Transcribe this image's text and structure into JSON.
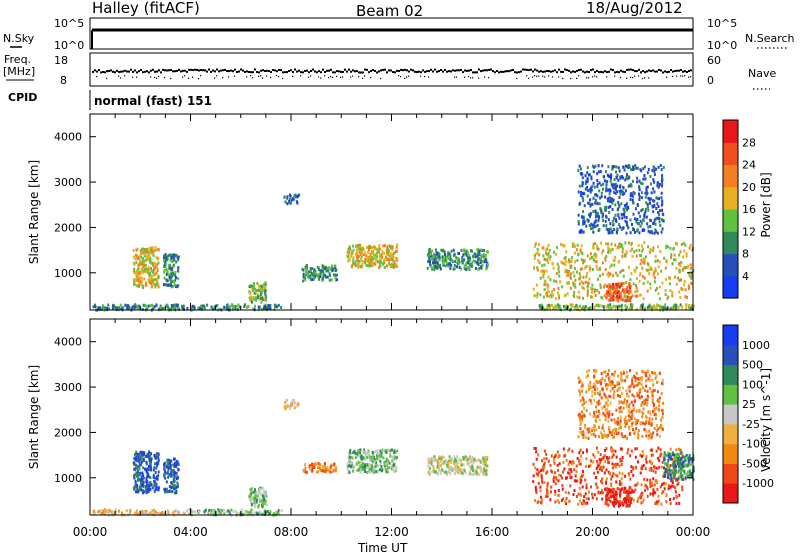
{
  "header": {
    "station": "Halley (fitACF)",
    "beam": "Beam 02",
    "date": "18/Aug/2012"
  },
  "left_labels": {
    "nsky": "N.Sky",
    "freq": "Freq.",
    "freq_unit": "[MHz]",
    "cpid": "CPID"
  },
  "right_labels": {
    "nsearch": "N.Search",
    "nave": "Nave"
  },
  "strip_ticks": {
    "nsky_top": "10^5",
    "nsky_bottom": "10^0",
    "nsearch_top": "10^5",
    "nsearch_bottom": "10^0",
    "freq_top": "18",
    "freq_bottom": "8",
    "nave_top": "60",
    "nave_bottom": "0"
  },
  "cpid_text": "normal (fast) 151",
  "x_axis": {
    "label": "Time UT",
    "ticks": [
      "00:00",
      "04:00",
      "08:00",
      "12:00",
      "16:00",
      "20:00",
      "00:00"
    ]
  },
  "colors": {
    "power": [
      "#1a3cf0",
      "#2850b8",
      "#2e8a5a",
      "#60c040",
      "#e8b020",
      "#f08020",
      "#f05020",
      "#e81818"
    ],
    "velocity": [
      "#e81818",
      "#f04818",
      "#f08a10",
      "#f0b040",
      "#c8c8c8",
      "#60c040",
      "#2e8a5a",
      "#2850b8",
      "#1a3cf0"
    ]
  },
  "chart_data": [
    {
      "type": "heatmap",
      "title": "",
      "xlabel": "",
      "ylabel": "Slant Range [km]",
      "xlim": [
        0,
        24
      ],
      "ylim": [
        180,
        4500
      ],
      "y_ticks": [
        1000,
        2000,
        3000,
        4000
      ],
      "colorbar": {
        "label": "Power [dB]",
        "ticks": [
          "4",
          "8",
          "12",
          "16",
          "20",
          "24",
          "28"
        ],
        "range": [
          0,
          30
        ]
      },
      "regions": [
        {
          "x": [
            0.1,
            7.6
          ],
          "y": [
            210,
            330
          ],
          "level": 2
        },
        {
          "x": [
            1.7,
            2.7
          ],
          "y": [
            700,
            1600
          ],
          "level": 4
        },
        {
          "x": [
            2.9,
            3.5
          ],
          "y": [
            700,
            1450
          ],
          "level": 2
        },
        {
          "x": [
            6.3,
            7.0
          ],
          "y": [
            380,
            820
          ],
          "level": 3
        },
        {
          "x": [
            7.7,
            8.3
          ],
          "y": [
            2550,
            2750
          ],
          "level": 1
        },
        {
          "x": [
            8.4,
            9.8
          ],
          "y": [
            850,
            1200
          ],
          "level": 2
        },
        {
          "x": [
            10.2,
            12.2
          ],
          "y": [
            1150,
            1650
          ],
          "level": 4
        },
        {
          "x": [
            13.4,
            15.8
          ],
          "y": [
            1100,
            1550
          ],
          "level": 2
        },
        {
          "x": [
            17.6,
            24.0
          ],
          "y": [
            450,
            1700
          ],
          "level": 4
        },
        {
          "x": [
            20.5,
            21.5
          ],
          "y": [
            400,
            800
          ],
          "level": 6
        },
        {
          "x": [
            19.4,
            22.8
          ],
          "y": [
            1900,
            3400
          ],
          "level": 1
        },
        {
          "x": [
            17.8,
            24.0
          ],
          "y": [
            210,
            330
          ],
          "level": 3
        }
      ]
    },
    {
      "type": "heatmap",
      "title": "",
      "xlabel": "Time UT",
      "ylabel": "Slant Range [km]",
      "xlim": [
        0,
        24
      ],
      "ylim": [
        180,
        4500
      ],
      "y_ticks": [
        1000,
        2000,
        3000,
        4000
      ],
      "colorbar": {
        "label": "Velocity [m s^-1]",
        "ticks": [
          "1000",
          "500",
          "100",
          "25",
          "-25",
          "-100",
          "-500",
          "-1000"
        ],
        "range": [
          -1000,
          1000
        ]
      },
      "regions": [
        {
          "x": [
            0.1,
            3.8
          ],
          "y": [
            210,
            330
          ],
          "level": 3
        },
        {
          "x": [
            3.8,
            7.6
          ],
          "y": [
            210,
            330
          ],
          "level": 5
        },
        {
          "x": [
            1.7,
            2.7
          ],
          "y": [
            700,
            1600
          ],
          "level": 7
        },
        {
          "x": [
            2.9,
            3.5
          ],
          "y": [
            700,
            1450
          ],
          "level": 7
        },
        {
          "x": [
            6.3,
            7.0
          ],
          "y": [
            380,
            820
          ],
          "level": 5
        },
        {
          "x": [
            7.7,
            8.3
          ],
          "y": [
            2550,
            2750
          ],
          "level": 3
        },
        {
          "x": [
            8.4,
            9.8
          ],
          "y": [
            1150,
            1350
          ],
          "level": 2
        },
        {
          "x": [
            10.2,
            12.2
          ],
          "y": [
            1150,
            1650
          ],
          "level": 5
        },
        {
          "x": [
            13.4,
            15.8
          ],
          "y": [
            1100,
            1500
          ],
          "level": 4
        },
        {
          "x": [
            17.6,
            23.6
          ],
          "y": [
            450,
            1700
          ],
          "level": 1
        },
        {
          "x": [
            20.5,
            21.5
          ],
          "y": [
            400,
            800
          ],
          "level": 0
        },
        {
          "x": [
            22.8,
            24.0
          ],
          "y": [
            1000,
            1600
          ],
          "level": 6
        },
        {
          "x": [
            19.4,
            22.8
          ],
          "y": [
            1900,
            3400
          ],
          "level": 2
        }
      ]
    }
  ]
}
